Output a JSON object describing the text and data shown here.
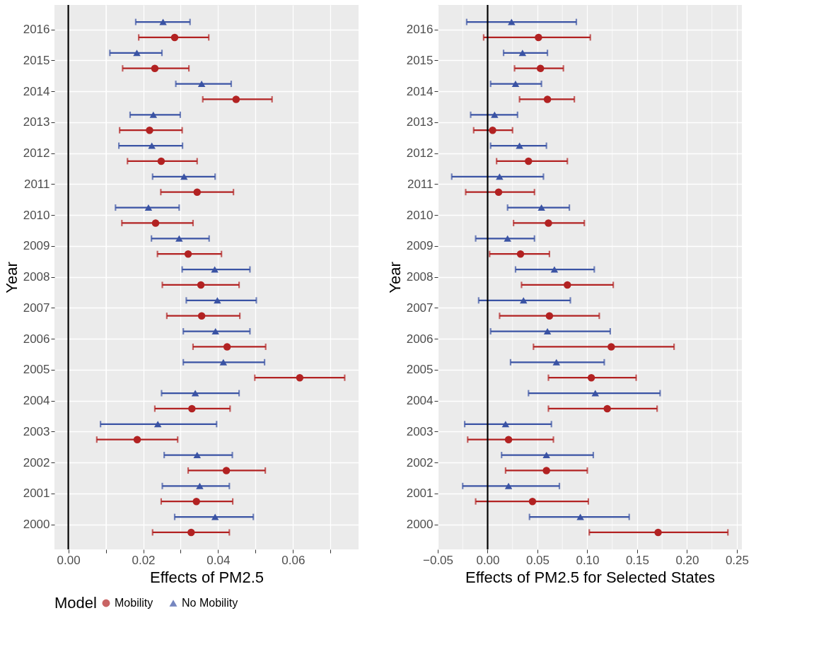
{
  "chart_data": [
    {
      "type": "scatter",
      "orientation": "horizontal",
      "ylabel": "Year",
      "xlabel": "Effects of PM2.5",
      "legend_title": "Model",
      "legend": "bottom",
      "grid": true,
      "categories": [
        "2016",
        "2015",
        "2014",
        "2013",
        "2012",
        "2011",
        "2010",
        "2009",
        "2008",
        "2007",
        "2006",
        "2005",
        "2004",
        "2003",
        "2002",
        "2001",
        "2000"
      ],
      "xlim": [
        -0.0037,
        0.0775
      ],
      "xticks": [
        {
          "value": 0,
          "label": "0.00"
        },
        {
          "value": 0.01,
          "label": null
        },
        {
          "value": 0.02,
          "label": "0.02"
        },
        {
          "value": 0.03,
          "label": null
        },
        {
          "value": 0.04,
          "label": "0.04"
        },
        {
          "value": 0.05,
          "label": null
        },
        {
          "value": 0.06,
          "label": "0.06"
        },
        {
          "value": 0.07,
          "label": null
        }
      ],
      "ref_lines": [
        {
          "axis": "x",
          "value": 0,
          "color": "#000000"
        }
      ],
      "series": [
        {
          "name": "Mobility",
          "color": "#b22222",
          "marker": "circle",
          "values": [
            0.0284,
            0.0231,
            0.0448,
            0.0217,
            0.0248,
            0.0344,
            0.0233,
            0.032,
            0.0354,
            0.0356,
            0.0424,
            0.0618,
            0.033,
            0.0184,
            0.0422,
            0.0342,
            0.0328
          ],
          "errors": [
            [
              0.0188,
              0.0375
            ],
            [
              0.0145,
              0.0322
            ],
            [
              0.0359,
              0.0544
            ],
            [
              0.0137,
              0.0304
            ],
            [
              0.0158,
              0.0344
            ],
            [
              0.0247,
              0.0441
            ],
            [
              0.0143,
              0.0333
            ],
            [
              0.0238,
              0.0409
            ],
            [
              0.0251,
              0.0456
            ],
            [
              0.0263,
              0.0458
            ],
            [
              0.0333,
              0.0527
            ],
            [
              0.0498,
              0.0738
            ],
            [
              0.0231,
              0.0432
            ],
            [
              0.0076,
              0.0292
            ],
            [
              0.032,
              0.0526
            ],
            [
              0.0248,
              0.0439
            ],
            [
              0.0225,
              0.043
            ]
          ]
        },
        {
          "name": "No Mobility",
          "color": "#3a53a4",
          "marker": "triangle",
          "values": [
            0.0253,
            0.0183,
            0.0356,
            0.0227,
            0.0223,
            0.0309,
            0.0214,
            0.0296,
            0.0391,
            0.0398,
            0.0393,
            0.0414,
            0.0339,
            0.0239,
            0.0344,
            0.0351,
            0.0392
          ],
          "errors": [
            [
              0.018,
              0.0325
            ],
            [
              0.0111,
              0.025
            ],
            [
              0.0287,
              0.0435
            ],
            [
              0.0165,
              0.0299
            ],
            [
              0.0135,
              0.0305
            ],
            [
              0.0225,
              0.0392
            ],
            [
              0.0126,
              0.0296
            ],
            [
              0.0222,
              0.0376
            ],
            [
              0.0304,
              0.0485
            ],
            [
              0.0315,
              0.0502
            ],
            [
              0.0307,
              0.0485
            ],
            [
              0.0307,
              0.0524
            ],
            [
              0.0249,
              0.0456
            ],
            [
              0.0086,
              0.0396
            ],
            [
              0.0256,
              0.0438
            ],
            [
              0.0251,
              0.043
            ],
            [
              0.0284,
              0.0494
            ]
          ]
        }
      ]
    },
    {
      "type": "scatter",
      "orientation": "horizontal",
      "ylabel": "Year",
      "xlabel": "Effects of PM2.5 for Selected States",
      "grid": true,
      "categories": [
        "2016",
        "2015",
        "2014",
        "2013",
        "2012",
        "2011",
        "2010",
        "2009",
        "2008",
        "2007",
        "2006",
        "2005",
        "2004",
        "2003",
        "2002",
        "2001",
        "2000"
      ],
      "xlim": [
        -0.05,
        0.255
      ],
      "xticks": [
        {
          "value": -0.05,
          "label": "−0.05"
        },
        {
          "value": -0.025,
          "label": null
        },
        {
          "value": 0,
          "label": "0.00"
        },
        {
          "value": 0.025,
          "label": null
        },
        {
          "value": 0.05,
          "label": "0.05"
        },
        {
          "value": 0.075,
          "label": null
        },
        {
          "value": 0.1,
          "label": "0.10"
        },
        {
          "value": 0.125,
          "label": null
        },
        {
          "value": 0.15,
          "label": "0.15"
        },
        {
          "value": 0.175,
          "label": null
        },
        {
          "value": 0.2,
          "label": "0.20"
        },
        {
          "value": 0.225,
          "label": null
        },
        {
          "value": 0.25,
          "label": "0.25"
        }
      ],
      "ref_lines": [
        {
          "axis": "x",
          "value": 0,
          "color": "#000000"
        }
      ],
      "series": [
        {
          "name": "Mobility",
          "color": "#b22222",
          "marker": "circle",
          "values": [
            0.051,
            0.053,
            0.06,
            0.005,
            0.041,
            0.011,
            0.061,
            0.033,
            0.08,
            0.062,
            0.124,
            0.104,
            0.12,
            0.021,
            0.059,
            0.045,
            0.171
          ],
          "errors": [
            [
              -0.004,
              0.103
            ],
            [
              0.027,
              0.076
            ],
            [
              0.032,
              0.087
            ],
            [
              -0.014,
              0.025
            ],
            [
              0.009,
              0.08
            ],
            [
              -0.022,
              0.047
            ],
            [
              0.026,
              0.097
            ],
            [
              0.002,
              0.062
            ],
            [
              0.034,
              0.126
            ],
            [
              0.012,
              0.112
            ],
            [
              0.046,
              0.187
            ],
            [
              0.061,
              0.149
            ],
            [
              0.061,
              0.17
            ],
            [
              -0.02,
              0.066
            ],
            [
              0.018,
              0.1
            ],
            [
              -0.012,
              0.101
            ],
            [
              0.102,
              0.241
            ]
          ]
        },
        {
          "name": "No Mobility",
          "color": "#3a53a4",
          "marker": "triangle",
          "values": [
            0.024,
            0.035,
            0.028,
            0.007,
            0.032,
            0.012,
            0.054,
            0.02,
            0.067,
            0.036,
            0.06,
            0.069,
            0.108,
            0.018,
            0.059,
            0.021,
            0.093
          ],
          "errors": [
            [
              -0.021,
              0.089
            ],
            [
              0.016,
              0.06
            ],
            [
              0.003,
              0.054
            ],
            [
              -0.017,
              0.03
            ],
            [
              0.003,
              0.059
            ],
            [
              -0.036,
              0.056
            ],
            [
              0.02,
              0.082
            ],
            [
              -0.012,
              0.047
            ],
            [
              0.028,
              0.107
            ],
            [
              -0.009,
              0.083
            ],
            [
              0.003,
              0.123
            ],
            [
              0.023,
              0.117
            ],
            [
              0.041,
              0.173
            ],
            [
              -0.023,
              0.064
            ],
            [
              0.014,
              0.106
            ],
            [
              -0.025,
              0.072
            ],
            [
              0.042,
              0.142
            ]
          ]
        }
      ]
    }
  ]
}
